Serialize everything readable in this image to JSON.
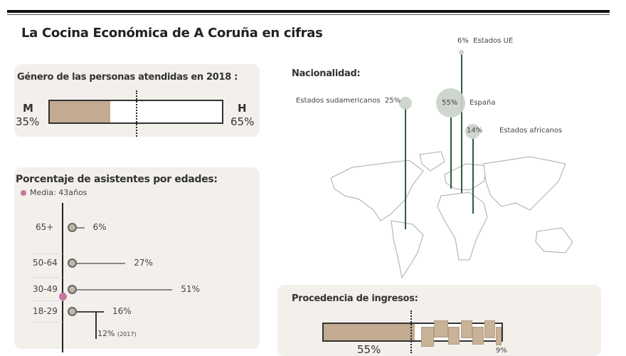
{
  "title": "La Cocina Económica de A Coruña en cifras",
  "gender": {
    "heading": "Género de las personas atendidas en 2018 :",
    "m_label": "M",
    "m_value": "35%",
    "h_label": "H",
    "h_value": "65%",
    "m_fraction": 0.35
  },
  "ages": {
    "heading": "Porcentaje de asistentes por edades:",
    "media": "Media: 43años",
    "rows": [
      {
        "label": "65+",
        "value": "6%",
        "pct": 6
      },
      {
        "label": "50-64",
        "value": "27%",
        "pct": 27
      },
      {
        "label": "30-49",
        "value": "51%",
        "pct": 51
      },
      {
        "label": "18-29",
        "value": "16%",
        "pct": 16
      }
    ],
    "prev": "12%",
    "prev_year": "(2017)"
  },
  "nationality": {
    "heading": "Nacionalidad:",
    "items": [
      {
        "label": "Estados UE",
        "value": "6%"
      },
      {
        "label": "Estados sudamericanos",
        "value": "25%"
      },
      {
        "label": "España",
        "value": "55%"
      },
      {
        "label": "Estados africanos",
        "value": "14%"
      }
    ]
  },
  "income": {
    "heading": "Procedencia de ingresos:",
    "main_value": "55%",
    "main_fraction": 0.55,
    "last_value": "9%"
  },
  "colors": {
    "fill": "#c2ab90",
    "green": "#2e5a3e",
    "pink": "#c9749f",
    "panel": "#f3f0ec"
  }
}
